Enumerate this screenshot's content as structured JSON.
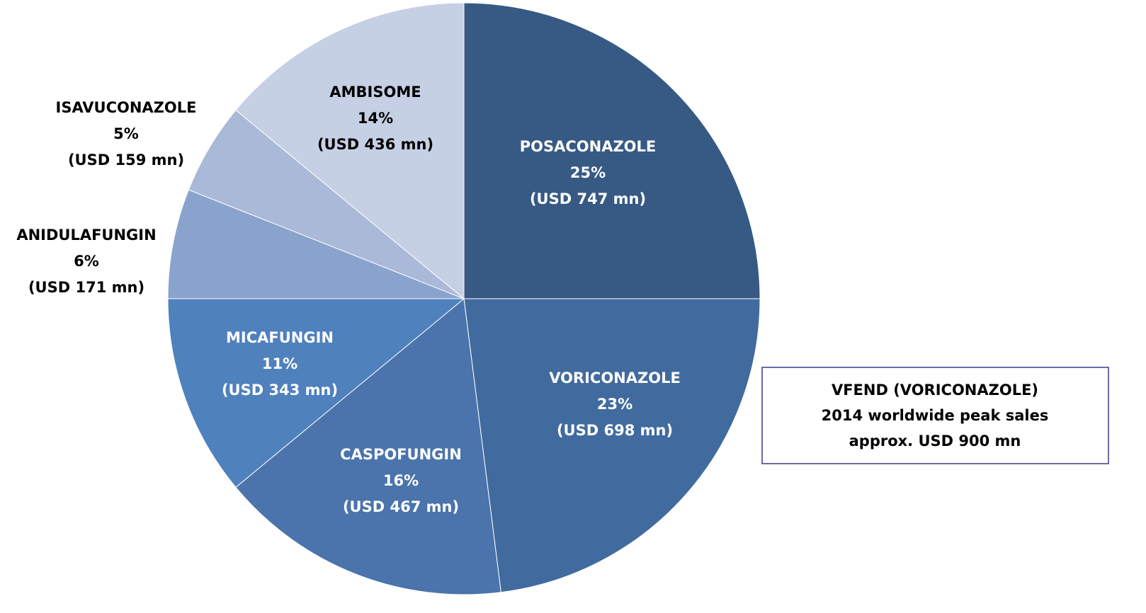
{
  "chart_data": {
    "type": "pie",
    "categories": [
      "POSACONAZOLE",
      "VORICONAZOLE",
      "CASPOFUNGIN",
      "MICAFUNGIN",
      "ANIDULAFUNGIN",
      "ISAVUCONAZOLE",
      "AMBISOME"
    ],
    "values": [
      25,
      23,
      16,
      11,
      6,
      5,
      14
    ],
    "value_labels": [
      "25%",
      "23%",
      "16%",
      "11%",
      "6%",
      "5%",
      "14%"
    ],
    "amount_labels": [
      "(USD 747 mn)",
      "(USD 698 mn)",
      "(USD 467 mn)",
      "(USD 343 mn)",
      "(USD 171 mn)",
      "(USD 159 mn)",
      "(USD 436 mn)"
    ],
    "colors": [
      "#375a84",
      "#416b9e",
      "#4a74ab",
      "#4f81bd",
      "#89a3cc",
      "#a9b9d7",
      "#c5d0e4"
    ],
    "annotation": [
      "VFEND (VORICONAZOLE)",
      "2014 worldwide peak sales",
      "approx. USD 900 mn"
    ]
  }
}
